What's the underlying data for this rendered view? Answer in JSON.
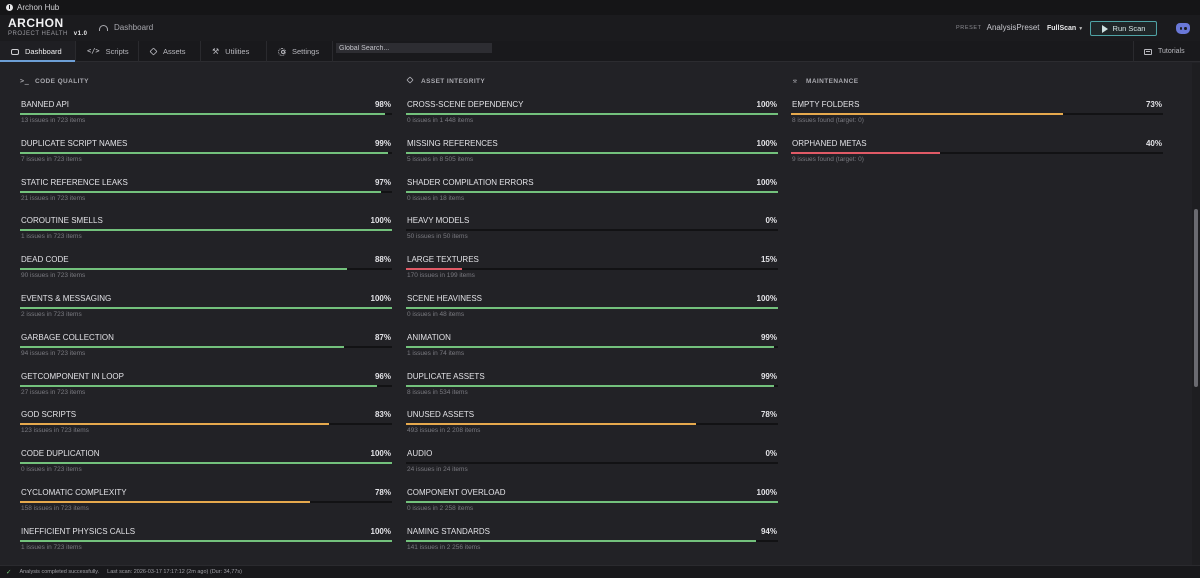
{
  "window": {
    "title": "Archon Hub"
  },
  "brand": {
    "title": "ARCHON",
    "subtitle": "PROJECT HEALTH",
    "version": "v1.0"
  },
  "header": {
    "breadcrumb": "Dashboard",
    "preset_label": "PRESET",
    "preset_value": "AnalysisPreset",
    "scan_mode": "FullScan",
    "run_label": "Run Scan"
  },
  "nav": {
    "tabs": [
      {
        "label": "Dashboard",
        "icon": "dashboard-icon",
        "active": true
      },
      {
        "label": "Scripts",
        "icon": "code-icon"
      },
      {
        "label": "Assets",
        "icon": "cube-icon"
      },
      {
        "label": "Utilities",
        "icon": "wrench-icon"
      },
      {
        "label": "Settings",
        "icon": "gear-icon"
      }
    ],
    "search_placeholder": "Global Search...",
    "tutorials": "Tutorials"
  },
  "colors": {
    "good": "#73c17c",
    "warn": "#e6a94d",
    "bad": "#e05a66",
    "accent": "#6d9fd6"
  },
  "columns": [
    {
      "title": "CODE QUALITY",
      "icon": "terminal-icon",
      "metrics": [
        {
          "name": "BANNED API",
          "pct": 98,
          "sub": "13 issues in 723 items",
          "status": "good"
        },
        {
          "name": "DUPLICATE SCRIPT NAMES",
          "pct": 99,
          "sub": "7 issues in 723 items",
          "status": "good"
        },
        {
          "name": "STATIC REFERENCE LEAKS",
          "pct": 97,
          "sub": "21 issues in 723 items",
          "status": "good"
        },
        {
          "name": "COROUTINE SMELLS",
          "pct": 100,
          "sub": "1 issues in 723 items",
          "status": "good"
        },
        {
          "name": "DEAD CODE",
          "pct": 88,
          "sub": "90 issues in 723 items",
          "status": "good"
        },
        {
          "name": "EVENTS & MESSAGING",
          "pct": 100,
          "sub": "2 issues in 723 items",
          "status": "good"
        },
        {
          "name": "GARBAGE COLLECTION",
          "pct": 87,
          "sub": "94 issues in 723 items",
          "status": "good"
        },
        {
          "name": "GETCOMPONENT IN LOOP",
          "pct": 96,
          "sub": "27 issues in 723 items",
          "status": "good"
        },
        {
          "name": "GOD SCRIPTS",
          "pct": 83,
          "sub": "123 issues in 723 items",
          "status": "warn"
        },
        {
          "name": "CODE DUPLICATION",
          "pct": 100,
          "sub": "0 issues in 723 items",
          "status": "good"
        },
        {
          "name": "CYCLOMATIC COMPLEXITY",
          "pct": 78,
          "sub": "158 issues in 723 items",
          "status": "warn"
        },
        {
          "name": "INEFFICIENT PHYSICS CALLS",
          "pct": 100,
          "sub": "1 issues in 723 items",
          "status": "good"
        }
      ]
    },
    {
      "title": "ASSET INTEGRITY",
      "icon": "cube-icon",
      "metrics": [
        {
          "name": "CROSS-SCENE DEPENDENCY",
          "pct": 100,
          "sub": "0 issues in 1 448 items",
          "status": "good"
        },
        {
          "name": "MISSING REFERENCES",
          "pct": 100,
          "sub": "5 issues in 8 505 items",
          "status": "good"
        },
        {
          "name": "SHADER COMPILATION ERRORS",
          "pct": 100,
          "sub": "0 issues in 18 items",
          "status": "good"
        },
        {
          "name": "HEAVY MODELS",
          "pct": 0,
          "sub": "50 issues in 50 items",
          "status": "bad"
        },
        {
          "name": "LARGE TEXTURES",
          "pct": 15,
          "sub": "170 issues in 199 items",
          "status": "bad"
        },
        {
          "name": "SCENE HEAVINESS",
          "pct": 100,
          "sub": "0 issues in 48 items",
          "status": "good"
        },
        {
          "name": "ANIMATION",
          "pct": 99,
          "sub": "1 issues in 74 items",
          "status": "good"
        },
        {
          "name": "DUPLICATE ASSETS",
          "pct": 99,
          "sub": "8 issues in 534 items",
          "status": "good"
        },
        {
          "name": "UNUSED ASSETS",
          "pct": 78,
          "sub": "493 issues in 2 208 items",
          "status": "warn"
        },
        {
          "name": "AUDIO",
          "pct": 0,
          "sub": "24 issues in 24 items",
          "status": "bad"
        },
        {
          "name": "COMPONENT OVERLOAD",
          "pct": 100,
          "sub": "0 issues in 2 258 items",
          "status": "good"
        },
        {
          "name": "NAMING STANDARDS",
          "pct": 94,
          "sub": "141 issues in 2 256 items",
          "status": "good"
        }
      ]
    },
    {
      "title": "MAINTENANCE",
      "icon": "wrench-icon",
      "metrics": [
        {
          "name": "EMPTY FOLDERS",
          "pct": 73,
          "sub": "8 issues found  (target: 0)",
          "status": "warn"
        },
        {
          "name": "ORPHANED METAS",
          "pct": 40,
          "sub": "9 issues found  (target: 0)",
          "status": "bad"
        }
      ]
    }
  ],
  "footer": {
    "status": "Analysis completed successfully.",
    "last_scan": "Last scan: 2026-03-17 17:17:12 (2m ago) (Dur: 34,77s)"
  }
}
